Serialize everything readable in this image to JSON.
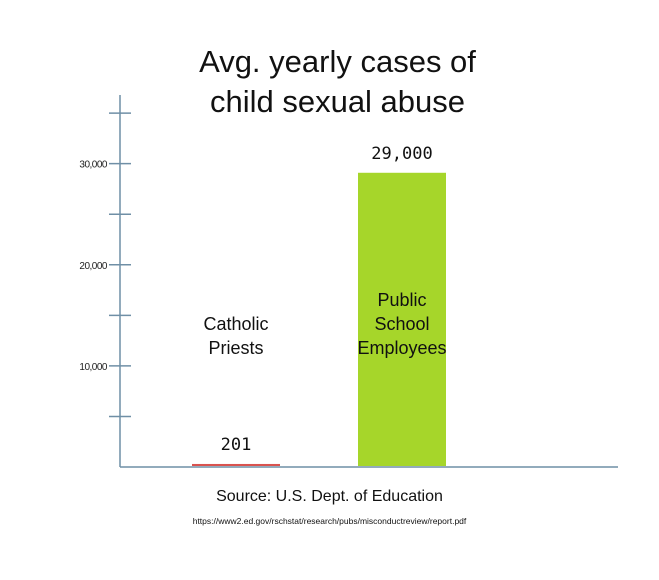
{
  "chart_data": {
    "type": "bar",
    "title": "Avg. yearly cases of child sexual abuse",
    "categories": [
      "Catholic Priests",
      "Public School Employees"
    ],
    "series": [
      {
        "values": [
          201,
          29000
        ],
        "value_labels": [
          "201",
          "29,000"
        ],
        "colors": [
          "#d9534f",
          "#a6d62a"
        ]
      }
    ],
    "ylim": [
      0,
      36000
    ],
    "yticks": [
      {
        "value": 10000,
        "label": "10,000"
      },
      {
        "value": 20000,
        "label": "20,000"
      },
      {
        "value": 30000,
        "label": "30,000"
      }
    ],
    "minor_yticks": [
      5000,
      15000,
      25000,
      35000
    ],
    "source": "Source: U.S. Dept. of Education",
    "url": "https://www2.ed.gov/rschstat/research/pubs/misconductreview/report.pdf"
  }
}
